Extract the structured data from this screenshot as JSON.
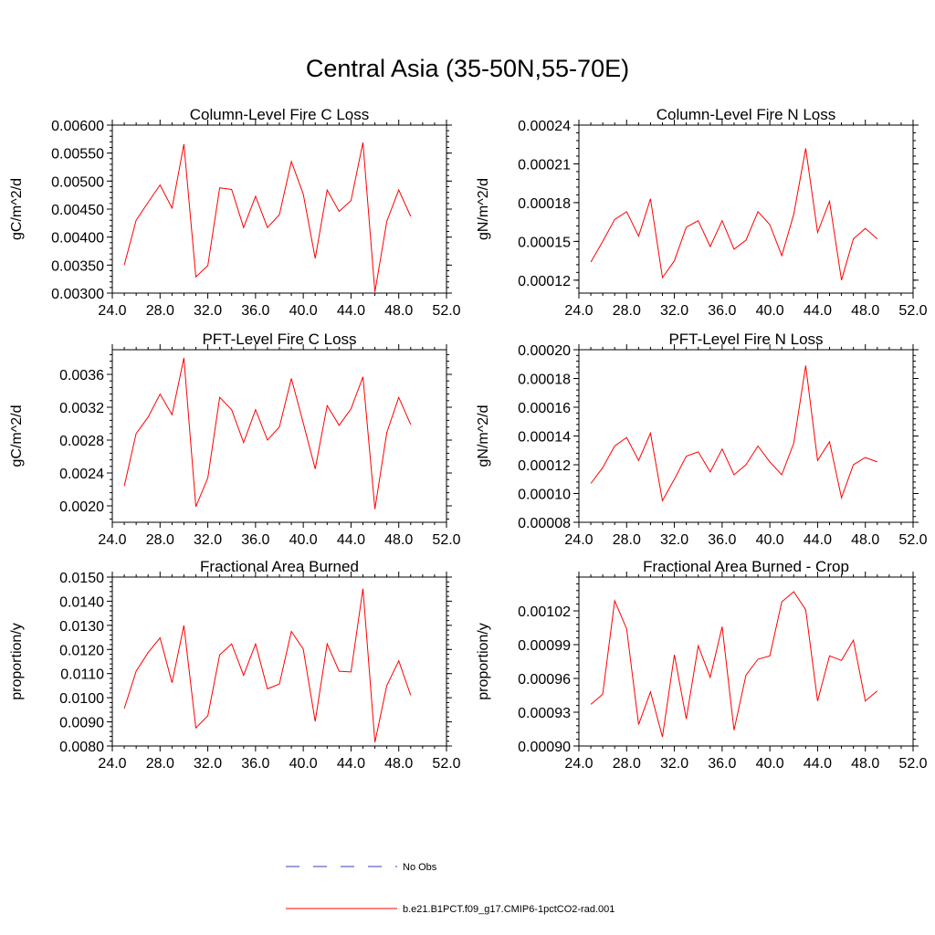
{
  "page": {
    "title": "Central Asia (35-50N,55-70E)"
  },
  "colors": {
    "series": "#ff0000",
    "obs": "#3b3bb3",
    "axis": "#000000"
  },
  "legend": [
    {
      "label": "No Obs",
      "style": "dashed",
      "color": "#3b3bb3"
    },
    {
      "label": "b.e21.B1PCT.f09_g17.CMIP6-1pctCO2-rad.001",
      "style": "solid",
      "color": "#ff0000"
    }
  ],
  "chart_data": [
    {
      "type": "line",
      "title": "Column-Level Fire C Loss",
      "ylabel": "gC/m^2/d",
      "xlim": [
        24,
        52
      ],
      "ylim": [
        0.003,
        0.006
      ],
      "xticks": [
        24,
        28,
        32,
        36,
        40,
        44,
        48,
        52
      ],
      "xtick_labels": [
        "24.0",
        "28.0",
        "32.0",
        "36.0",
        "40.0",
        "44.0",
        "48.0",
        "52.0"
      ],
      "yticks": [
        0.003,
        0.0035,
        0.004,
        0.0045,
        0.005,
        0.0055,
        0.006
      ],
      "ytick_labels": [
        "0.00300",
        "0.00350",
        "0.00400",
        "0.00450",
        "0.00500",
        "0.00550",
        "0.00600"
      ],
      "x": [
        25,
        26,
        27,
        28,
        29,
        30,
        31,
        32,
        33,
        34,
        35,
        36,
        37,
        38,
        39,
        40,
        41,
        42,
        43,
        44,
        45,
        46,
        47,
        48,
        49
      ],
      "series": [
        {
          "values": [
            0.0035,
            0.0043,
            0.00462,
            0.00493,
            0.00452,
            0.00566,
            0.00329,
            0.00349,
            0.00488,
            0.00485,
            0.00417,
            0.00473,
            0.00417,
            0.0044,
            0.00535,
            0.00477,
            0.00362,
            0.00484,
            0.00446,
            0.00465,
            0.00569,
            0.00302,
            0.00428,
            0.00484,
            0.00437
          ]
        }
      ]
    },
    {
      "type": "line",
      "title": "Column-Level Fire N Loss",
      "ylabel": "gN/m^2/d",
      "xlim": [
        24,
        52
      ],
      "ylim": [
        0.00011,
        0.00024
      ],
      "xticks": [
        24,
        28,
        32,
        36,
        40,
        44,
        48,
        52
      ],
      "xtick_labels": [
        "24.0",
        "28.0",
        "32.0",
        "36.0",
        "40.0",
        "44.0",
        "48.0",
        "52.0"
      ],
      "yticks": [
        0.00012,
        0.00015,
        0.00018,
        0.00021,
        0.00024
      ],
      "ytick_labels": [
        "0.00012",
        "0.00015",
        "0.00018",
        "0.00021",
        "0.00024"
      ],
      "x": [
        25,
        26,
        27,
        28,
        29,
        30,
        31,
        32,
        33,
        34,
        35,
        36,
        37,
        38,
        39,
        40,
        41,
        42,
        43,
        44,
        45,
        46,
        47,
        48,
        49
      ],
      "series": [
        {
          "values": [
            0.000134,
            0.00015,
            0.000167,
            0.000173,
            0.000154,
            0.000183,
            0.000122,
            0.000135,
            0.000161,
            0.000166,
            0.000146,
            0.000166,
            0.000144,
            0.000151,
            0.000173,
            0.000163,
            0.000139,
            0.000171,
            0.000222,
            0.000157,
            0.000181,
            0.00012,
            0.000152,
            0.00016,
            0.000152
          ]
        }
      ]
    },
    {
      "type": "line",
      "title": "PFT-Level Fire C Loss",
      "ylabel": "gC/m^2/d",
      "xlim": [
        24,
        52
      ],
      "ylim": [
        0.0018,
        0.0039
      ],
      "xticks": [
        24,
        28,
        32,
        36,
        40,
        44,
        48,
        52
      ],
      "xtick_labels": [
        "24.0",
        "28.0",
        "32.0",
        "36.0",
        "40.0",
        "44.0",
        "48.0",
        "52.0"
      ],
      "yticks": [
        0.002,
        0.0024,
        0.0028,
        0.0032,
        0.0036
      ],
      "ytick_labels": [
        "0.0020",
        "0.0024",
        "0.0028",
        "0.0032",
        "0.0036"
      ],
      "x": [
        25,
        26,
        27,
        28,
        29,
        30,
        31,
        32,
        33,
        34,
        35,
        36,
        37,
        38,
        39,
        40,
        41,
        42,
        43,
        44,
        45,
        46,
        47,
        48,
        49
      ],
      "series": [
        {
          "values": [
            0.00224,
            0.00288,
            0.00308,
            0.00336,
            0.00311,
            0.0038,
            0.00199,
            0.00234,
            0.00332,
            0.00317,
            0.00277,
            0.00317,
            0.0028,
            0.00296,
            0.00355,
            0.00301,
            0.00245,
            0.00322,
            0.00298,
            0.00318,
            0.00357,
            0.00196,
            0.00289,
            0.00332,
            0.00299
          ]
        }
      ]
    },
    {
      "type": "line",
      "title": "PFT-Level Fire N Loss",
      "ylabel": "gN/m^2/d",
      "xlim": [
        24,
        52
      ],
      "ylim": [
        8e-05,
        0.0002
      ],
      "xticks": [
        24,
        28,
        32,
        36,
        40,
        44,
        48,
        52
      ],
      "xtick_labels": [
        "24.0",
        "28.0",
        "32.0",
        "36.0",
        "40.0",
        "44.0",
        "48.0",
        "52.0"
      ],
      "yticks": [
        8e-05,
        0.0001,
        0.00012,
        0.00014,
        0.00016,
        0.00018,
        0.0002
      ],
      "ytick_labels": [
        "0.00008",
        "0.00010",
        "0.00012",
        "0.00014",
        "0.00016",
        "0.00018",
        "0.00020"
      ],
      "x": [
        25,
        26,
        27,
        28,
        29,
        30,
        31,
        32,
        33,
        34,
        35,
        36,
        37,
        38,
        39,
        40,
        41,
        42,
        43,
        44,
        45,
        46,
        47,
        48,
        49
      ],
      "series": [
        {
          "values": [
            0.000107,
            0.000118,
            0.000133,
            0.000139,
            0.000123,
            0.000142,
            9.5e-05,
            0.00011,
            0.000126,
            0.000129,
            0.000115,
            0.000131,
            0.000113,
            0.00012,
            0.000133,
            0.000122,
            0.000113,
            0.000135,
            0.000189,
            0.000123,
            0.000136,
            9.7e-05,
            0.00012,
            0.000125,
            0.000122
          ]
        }
      ]
    },
    {
      "type": "line",
      "title": "Fractional Area Burned",
      "ylabel": "proportion/y",
      "xlim": [
        24,
        52
      ],
      "ylim": [
        0.008,
        0.015
      ],
      "xticks": [
        24,
        28,
        32,
        36,
        40,
        44,
        48,
        52
      ],
      "xtick_labels": [
        "24.0",
        "28.0",
        "32.0",
        "36.0",
        "40.0",
        "44.0",
        "48.0",
        "52.0"
      ],
      "yticks": [
        0.008,
        0.009,
        0.01,
        0.011,
        0.012,
        0.013,
        0.014,
        0.015
      ],
      "ytick_labels": [
        "0.0080",
        "0.0090",
        "0.0100",
        "0.0110",
        "0.0120",
        "0.0130",
        "0.0140",
        "0.0150"
      ],
      "x": [
        25,
        26,
        27,
        28,
        29,
        30,
        31,
        32,
        33,
        34,
        35,
        36,
        37,
        38,
        39,
        40,
        41,
        42,
        43,
        44,
        45,
        46,
        47,
        48,
        49
      ],
      "series": [
        {
          "values": [
            0.00955,
            0.0111,
            0.01187,
            0.01248,
            0.01062,
            0.013,
            0.00875,
            0.00925,
            0.01178,
            0.01223,
            0.01093,
            0.01223,
            0.01037,
            0.01057,
            0.01275,
            0.01202,
            0.00902,
            0.01223,
            0.0111,
            0.01107,
            0.01452,
            0.00815,
            0.0105,
            0.01153,
            0.0101
          ]
        }
      ]
    },
    {
      "type": "line",
      "title": "Fractional Area Burned - Crop",
      "ylabel": "proportion/y",
      "xlim": [
        24,
        52
      ],
      "ylim": [
        0.0009,
        0.00105
      ],
      "xticks": [
        24,
        28,
        32,
        36,
        40,
        44,
        48,
        52
      ],
      "xtick_labels": [
        "24.0",
        "28.0",
        "32.0",
        "36.0",
        "40.0",
        "44.0",
        "48.0",
        "52.0"
      ],
      "yticks": [
        0.0009,
        0.00093,
        0.00096,
        0.00099,
        0.00102
      ],
      "ytick_labels": [
        "0.00090",
        "0.00093",
        "0.00096",
        "0.00099",
        "0.00102"
      ],
      "x": [
        25,
        26,
        27,
        28,
        29,
        30,
        31,
        32,
        33,
        34,
        35,
        36,
        37,
        38,
        39,
        40,
        41,
        42,
        43,
        44,
        45,
        46,
        47,
        48,
        49
      ],
      "series": [
        {
          "values": [
            0.000937,
            0.000946,
            0.001029,
            0.001004,
            0.000919,
            0.000948,
            0.000908,
            0.000981,
            0.000924,
            0.000989,
            0.000961,
            0.001006,
            0.000914,
            0.000963,
            0.000977,
            0.00098,
            0.001028,
            0.001037,
            0.001021,
            0.00094,
            0.00098,
            0.000976,
            0.000994,
            0.00094,
            0.000949
          ]
        }
      ]
    }
  ]
}
